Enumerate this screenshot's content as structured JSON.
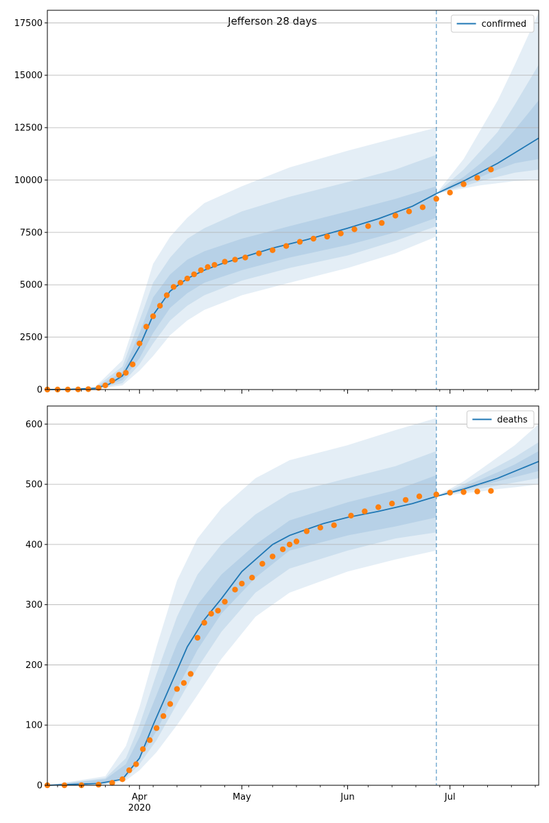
{
  "figure": {
    "title": "Jefferson 28 days"
  },
  "chart_data": [
    {
      "type": "line",
      "series_name": "confirmed",
      "legend_label": "confirmed",
      "legend_placement": "top-right",
      "grid": "horizontal",
      "x_range": [
        "2020-03-05",
        "2020-07-27"
      ],
      "ylim": [
        0,
        18100
      ],
      "yticks": [
        0,
        2500,
        5000,
        7500,
        10000,
        12500,
        15000,
        17500
      ],
      "forecast_start": "2020-06-27",
      "colors": {
        "model": "#1f77b4",
        "observed": "#ff7f0e",
        "band": "#1f77b4"
      },
      "model_curve": {
        "x": [
          "2020-03-05",
          "2020-03-12",
          "2020-03-19",
          "2020-03-23",
          "2020-03-27",
          "2020-04-01",
          "2020-04-05",
          "2020-04-10",
          "2020-04-15",
          "2020-04-20",
          "2020-04-25",
          "2020-05-01",
          "2020-05-10",
          "2020-05-20",
          "2020-06-01",
          "2020-06-10",
          "2020-06-20",
          "2020-06-27",
          "2020-07-05",
          "2020-07-15",
          "2020-07-27"
        ],
        "y": [
          0,
          10,
          60,
          250,
          650,
          2050,
          3550,
          4700,
          5300,
          5700,
          6000,
          6300,
          6750,
          7150,
          7700,
          8150,
          8750,
          9350,
          9950,
          10800,
          12000
        ]
      },
      "bands": [
        {
          "x": [
            "2020-03-05",
            "2020-03-19",
            "2020-03-27",
            "2020-04-01",
            "2020-04-05",
            "2020-04-10",
            "2020-04-15",
            "2020-04-20",
            "2020-05-01",
            "2020-05-15",
            "2020-06-01",
            "2020-06-15",
            "2020-06-27"
          ],
          "upper": [
            0,
            120,
            1400,
            3900,
            6000,
            7300,
            8200,
            8900,
            9700,
            10600,
            11400,
            12000,
            12500
          ],
          "lower": [
            0,
            10,
            200,
            900,
            1600,
            2600,
            3300,
            3800,
            4500,
            5100,
            5800,
            6500,
            7300
          ]
        },
        {
          "x": [
            "2020-03-05",
            "2020-03-19",
            "2020-03-27",
            "2020-04-01",
            "2020-04-05",
            "2020-04-10",
            "2020-04-15",
            "2020-04-20",
            "2020-05-01",
            "2020-05-15",
            "2020-06-01",
            "2020-06-15",
            "2020-06-27"
          ],
          "upper": [
            0,
            90,
            1100,
            3300,
            5100,
            6300,
            7200,
            7700,
            8500,
            9200,
            9900,
            10500,
            11200
          ],
          "lower": [
            0,
            20,
            300,
            1200,
            2200,
            3300,
            4000,
            4500,
            5200,
            5800,
            6400,
            7100,
            7800
          ]
        },
        {
          "x": [
            "2020-03-05",
            "2020-03-19",
            "2020-03-27",
            "2020-04-01",
            "2020-04-05",
            "2020-04-10",
            "2020-04-15",
            "2020-04-20",
            "2020-05-01",
            "2020-05-15",
            "2020-06-01",
            "2020-06-15",
            "2020-06-27"
          ],
          "upper": [
            0,
            75,
            850,
            2700,
            4400,
            5500,
            6200,
            6600,
            7200,
            7800,
            8500,
            9100,
            9700
          ],
          "lower": [
            0,
            30,
            450,
            1500,
            2700,
            3900,
            4600,
            5100,
            5700,
            6300,
            6900,
            7500,
            8200
          ]
        },
        {
          "x": [
            "2020-06-27",
            "2020-07-05",
            "2020-07-10",
            "2020-07-15",
            "2020-07-20",
            "2020-07-27"
          ],
          "upper": [
            9350,
            11000,
            12400,
            13800,
            15500,
            18000
          ],
          "lower": [
            9350,
            9600,
            9750,
            9850,
            9950,
            10000
          ]
        },
        {
          "x": [
            "2020-06-27",
            "2020-07-05",
            "2020-07-10",
            "2020-07-15",
            "2020-07-20",
            "2020-07-27"
          ],
          "upper": [
            9350,
            10500,
            11400,
            12300,
            13600,
            15500
          ],
          "lower": [
            9350,
            9700,
            9950,
            10150,
            10350,
            10500
          ]
        },
        {
          "x": [
            "2020-06-27",
            "2020-07-05",
            "2020-07-10",
            "2020-07-15",
            "2020-07-20",
            "2020-07-27"
          ],
          "upper": [
            9350,
            10150,
            10800,
            11500,
            12400,
            13800
          ],
          "lower": [
            9350,
            9800,
            10150,
            10500,
            10800,
            11000
          ]
        }
      ],
      "observed": {
        "x": [
          "2020-03-05",
          "2020-03-08",
          "2020-03-11",
          "2020-03-14",
          "2020-03-17",
          "2020-03-20",
          "2020-03-22",
          "2020-03-24",
          "2020-03-26",
          "2020-03-28",
          "2020-03-30",
          "2020-04-01",
          "2020-04-03",
          "2020-04-05",
          "2020-04-07",
          "2020-04-09",
          "2020-04-11",
          "2020-04-13",
          "2020-04-15",
          "2020-04-17",
          "2020-04-19",
          "2020-04-21",
          "2020-04-23",
          "2020-04-26",
          "2020-04-29",
          "2020-05-02",
          "2020-05-06",
          "2020-05-10",
          "2020-05-14",
          "2020-05-18",
          "2020-05-22",
          "2020-05-26",
          "2020-05-30",
          "2020-06-03",
          "2020-06-07",
          "2020-06-11",
          "2020-06-15",
          "2020-06-19",
          "2020-06-23",
          "2020-06-27",
          "2020-07-01",
          "2020-07-05",
          "2020-07-09",
          "2020-07-13"
        ],
        "y": [
          0,
          0,
          0,
          5,
          20,
          80,
          200,
          420,
          700,
          800,
          1200,
          2200,
          3000,
          3500,
          4000,
          4500,
          4900,
          5100,
          5300,
          5500,
          5700,
          5850,
          5950,
          6100,
          6200,
          6300,
          6500,
          6650,
          6850,
          7050,
          7200,
          7300,
          7450,
          7650,
          7800,
          7950,
          8300,
          8500,
          8700,
          9100,
          9400,
          9800,
          10100,
          10500
        ]
      }
    },
    {
      "type": "line",
      "series_name": "deaths",
      "legend_label": "deaths",
      "legend_placement": "top-right",
      "grid": "horizontal",
      "x_range": [
        "2020-03-05",
        "2020-07-27"
      ],
      "ylim": [
        0,
        630
      ],
      "yticks": [
        0,
        100,
        200,
        300,
        400,
        500,
        600
      ],
      "xticks": [
        "Apr",
        "May",
        "Jun",
        "Jul"
      ],
      "xtick_dates": [
        "2020-04-01",
        "2020-05-01",
        "2020-06-01",
        "2020-07-01"
      ],
      "year_label": "2020",
      "forecast_start": "2020-06-27",
      "colors": {
        "model": "#1f77b4",
        "observed": "#ff7f0e",
        "band": "#1f77b4"
      },
      "model_curve": {
        "x": [
          "2020-03-05",
          "2020-03-20",
          "2020-03-27",
          "2020-04-01",
          "2020-04-05",
          "2020-04-10",
          "2020-04-15",
          "2020-04-20",
          "2020-04-25",
          "2020-05-01",
          "2020-05-06",
          "2020-05-10",
          "2020-05-15",
          "2020-05-20",
          "2020-05-25",
          "2020-06-01",
          "2020-06-10",
          "2020-06-20",
          "2020-06-27",
          "2020-07-05",
          "2020-07-15",
          "2020-07-27"
        ],
        "y": [
          0,
          3,
          10,
          45,
          100,
          165,
          230,
          275,
          310,
          355,
          380,
          400,
          415,
          425,
          435,
          445,
          455,
          468,
          480,
          492,
          510,
          538
        ]
      },
      "bands": [
        {
          "x": [
            "2020-03-05",
            "2020-03-22",
            "2020-03-28",
            "2020-04-01",
            "2020-04-06",
            "2020-04-12",
            "2020-04-18",
            "2020-04-25",
            "2020-05-05",
            "2020-05-15",
            "2020-06-01",
            "2020-06-15",
            "2020-06-27"
          ],
          "upper": [
            0,
            15,
            65,
            130,
            230,
            340,
            410,
            460,
            510,
            540,
            565,
            590,
            610
          ],
          "lower": [
            0,
            1,
            8,
            25,
            55,
            100,
            150,
            210,
            280,
            320,
            355,
            375,
            390
          ]
        },
        {
          "x": [
            "2020-03-05",
            "2020-03-22",
            "2020-03-28",
            "2020-04-01",
            "2020-04-06",
            "2020-04-12",
            "2020-04-18",
            "2020-04-25",
            "2020-05-05",
            "2020-05-15",
            "2020-06-01",
            "2020-06-15",
            "2020-06-27"
          ],
          "upper": [
            0,
            12,
            45,
            100,
            185,
            280,
            350,
            400,
            450,
            485,
            510,
            530,
            555
          ],
          "lower": [
            0,
            2,
            12,
            35,
            75,
            135,
            195,
            255,
            320,
            360,
            390,
            410,
            420
          ]
        },
        {
          "x": [
            "2020-03-05",
            "2020-03-22",
            "2020-03-28",
            "2020-04-01",
            "2020-04-06",
            "2020-04-12",
            "2020-04-18",
            "2020-04-25",
            "2020-05-05",
            "2020-05-15",
            "2020-06-01",
            "2020-06-15",
            "2020-06-27"
          ],
          "upper": [
            0,
            10,
            35,
            80,
            150,
            235,
            300,
            350,
            400,
            440,
            470,
            490,
            515
          ],
          "lower": [
            0,
            3,
            15,
            45,
            90,
            160,
            225,
            285,
            345,
            390,
            415,
            430,
            445
          ]
        },
        {
          "x": [
            "2020-06-27",
            "2020-07-05",
            "2020-07-10",
            "2020-07-15",
            "2020-07-20",
            "2020-07-27"
          ],
          "upper": [
            480,
            505,
            525,
            545,
            565,
            600
          ],
          "lower": [
            480,
            485,
            488,
            492,
            495,
            500
          ]
        },
        {
          "x": [
            "2020-06-27",
            "2020-07-05",
            "2020-07-10",
            "2020-07-15",
            "2020-07-20",
            "2020-07-27"
          ],
          "upper": [
            480,
            500,
            515,
            530,
            545,
            570
          ],
          "lower": [
            480,
            488,
            493,
            498,
            503,
            510
          ]
        },
        {
          "x": [
            "2020-06-27",
            "2020-07-05",
            "2020-07-10",
            "2020-07-15",
            "2020-07-20",
            "2020-07-27"
          ],
          "upper": [
            480,
            496,
            508,
            520,
            533,
            555
          ],
          "lower": [
            480,
            490,
            498,
            505,
            512,
            522
          ]
        }
      ],
      "observed": {
        "x": [
          "2020-03-05",
          "2020-03-10",
          "2020-03-15",
          "2020-03-20",
          "2020-03-24",
          "2020-03-27",
          "2020-03-29",
          "2020-03-31",
          "2020-04-02",
          "2020-04-04",
          "2020-04-06",
          "2020-04-08",
          "2020-04-10",
          "2020-04-12",
          "2020-04-14",
          "2020-04-16",
          "2020-04-18",
          "2020-04-20",
          "2020-04-22",
          "2020-04-24",
          "2020-04-26",
          "2020-04-29",
          "2020-05-01",
          "2020-05-04",
          "2020-05-07",
          "2020-05-10",
          "2020-05-13",
          "2020-05-15",
          "2020-05-17",
          "2020-05-20",
          "2020-05-24",
          "2020-05-28",
          "2020-06-02",
          "2020-06-06",
          "2020-06-10",
          "2020-06-14",
          "2020-06-18",
          "2020-06-22",
          "2020-06-27",
          "2020-07-01",
          "2020-07-05",
          "2020-07-09",
          "2020-07-13"
        ],
        "y": [
          0,
          0,
          0,
          1,
          4,
          10,
          25,
          35,
          60,
          75,
          95,
          115,
          135,
          160,
          170,
          185,
          245,
          270,
          285,
          290,
          305,
          325,
          335,
          345,
          368,
          380,
          392,
          400,
          405,
          422,
          428,
          432,
          448,
          455,
          462,
          468,
          474,
          480,
          483,
          486,
          487,
          488,
          489
        ]
      }
    }
  ]
}
